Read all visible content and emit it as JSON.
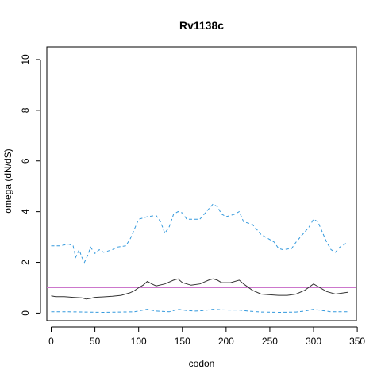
{
  "chart_data": {
    "type": "line",
    "title": "Rv1138c",
    "xlabel": "codon",
    "ylabel": "omega (dN/dS)",
    "xlim": [
      -5,
      349
    ],
    "ylim": [
      -0.3,
      10.5
    ],
    "x_ticks": [
      0,
      50,
      100,
      150,
      200,
      250,
      300,
      350
    ],
    "y_ticks": [
      0,
      2,
      4,
      6,
      8,
      10
    ],
    "reference_line": {
      "y": 1,
      "color": "#cc77cc"
    },
    "grid": false,
    "series": [
      {
        "role": "mean",
        "style": "solid",
        "color": "#333333",
        "points": [
          [
            0,
            0.68
          ],
          [
            5,
            0.65
          ],
          [
            15,
            0.65
          ],
          [
            25,
            0.62
          ],
          [
            35,
            0.6
          ],
          [
            40,
            0.55
          ],
          [
            45,
            0.58
          ],
          [
            50,
            0.62
          ],
          [
            60,
            0.64
          ],
          [
            70,
            0.66
          ],
          [
            80,
            0.7
          ],
          [
            90,
            0.8
          ],
          [
            95,
            0.88
          ],
          [
            100,
            1.0
          ],
          [
            105,
            1.1
          ],
          [
            110,
            1.25
          ],
          [
            115,
            1.15
          ],
          [
            120,
            1.07
          ],
          [
            130,
            1.15
          ],
          [
            140,
            1.3
          ],
          [
            145,
            1.35
          ],
          [
            150,
            1.2
          ],
          [
            160,
            1.1
          ],
          [
            170,
            1.15
          ],
          [
            180,
            1.3
          ],
          [
            185,
            1.35
          ],
          [
            190,
            1.3
          ],
          [
            195,
            1.2
          ],
          [
            205,
            1.2
          ],
          [
            215,
            1.3
          ],
          [
            220,
            1.15
          ],
          [
            230,
            0.9
          ],
          [
            240,
            0.75
          ],
          [
            250,
            0.72
          ],
          [
            260,
            0.7
          ],
          [
            270,
            0.7
          ],
          [
            280,
            0.75
          ],
          [
            290,
            0.9
          ],
          [
            300,
            1.15
          ],
          [
            305,
            1.05
          ],
          [
            315,
            0.85
          ],
          [
            325,
            0.75
          ],
          [
            335,
            0.8
          ],
          [
            339,
            0.82
          ]
        ]
      },
      {
        "role": "upper",
        "style": "dashed",
        "color": "#3399dd",
        "points": [
          [
            0,
            2.65
          ],
          [
            10,
            2.65
          ],
          [
            20,
            2.72
          ],
          [
            25,
            2.65
          ],
          [
            28,
            2.2
          ],
          [
            32,
            2.5
          ],
          [
            35,
            2.2
          ],
          [
            38,
            2.0
          ],
          [
            42,
            2.3
          ],
          [
            45,
            2.6
          ],
          [
            50,
            2.35
          ],
          [
            55,
            2.5
          ],
          [
            60,
            2.4
          ],
          [
            70,
            2.5
          ],
          [
            75,
            2.6
          ],
          [
            85,
            2.65
          ],
          [
            90,
            2.9
          ],
          [
            95,
            3.3
          ],
          [
            100,
            3.7
          ],
          [
            110,
            3.8
          ],
          [
            120,
            3.85
          ],
          [
            125,
            3.6
          ],
          [
            130,
            3.15
          ],
          [
            135,
            3.4
          ],
          [
            140,
            3.9
          ],
          [
            145,
            4.0
          ],
          [
            150,
            3.95
          ],
          [
            155,
            3.7
          ],
          [
            170,
            3.7
          ],
          [
            175,
            3.9
          ],
          [
            180,
            4.1
          ],
          [
            185,
            4.3
          ],
          [
            190,
            4.2
          ],
          [
            195,
            3.9
          ],
          [
            200,
            3.8
          ],
          [
            210,
            3.9
          ],
          [
            215,
            4.0
          ],
          [
            220,
            3.6
          ],
          [
            230,
            3.5
          ],
          [
            240,
            3.1
          ],
          [
            245,
            3.0
          ],
          [
            255,
            2.8
          ],
          [
            260,
            2.55
          ],
          [
            265,
            2.5
          ],
          [
            275,
            2.55
          ],
          [
            280,
            2.8
          ],
          [
            285,
            3.0
          ],
          [
            295,
            3.4
          ],
          [
            300,
            3.7
          ],
          [
            305,
            3.6
          ],
          [
            310,
            3.2
          ],
          [
            315,
            2.8
          ],
          [
            320,
            2.5
          ],
          [
            325,
            2.4
          ],
          [
            330,
            2.6
          ],
          [
            335,
            2.7
          ],
          [
            339,
            2.8
          ]
        ]
      },
      {
        "role": "lower",
        "style": "dashed",
        "color": "#3399dd",
        "points": [
          [
            0,
            0.05
          ],
          [
            20,
            0.05
          ],
          [
            40,
            0.04
          ],
          [
            60,
            0.03
          ],
          [
            80,
            0.04
          ],
          [
            95,
            0.05
          ],
          [
            105,
            0.12
          ],
          [
            110,
            0.15
          ],
          [
            120,
            0.08
          ],
          [
            135,
            0.05
          ],
          [
            145,
            0.15
          ],
          [
            155,
            0.1
          ],
          [
            165,
            0.08
          ],
          [
            175,
            0.1
          ],
          [
            185,
            0.15
          ],
          [
            200,
            0.12
          ],
          [
            215,
            0.12
          ],
          [
            225,
            0.08
          ],
          [
            240,
            0.04
          ],
          [
            260,
            0.03
          ],
          [
            280,
            0.04
          ],
          [
            290,
            0.08
          ],
          [
            300,
            0.15
          ],
          [
            310,
            0.1
          ],
          [
            320,
            0.05
          ],
          [
            339,
            0.05
          ]
        ]
      }
    ]
  }
}
